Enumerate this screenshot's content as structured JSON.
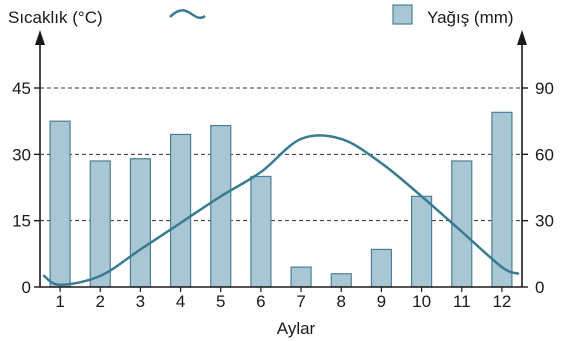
{
  "chart_data": {
    "type": "bar+line",
    "title": "",
    "xlabel": "Aylar",
    "categories": [
      "1",
      "2",
      "3",
      "4",
      "5",
      "6",
      "7",
      "8",
      "9",
      "10",
      "11",
      "12"
    ],
    "temperature": {
      "name": "Sıcaklık (°C)",
      "axis": "left",
      "ylim": [
        0,
        45
      ],
      "ticks": [
        "0",
        "15",
        "30",
        "45"
      ],
      "x": [
        0.6,
        1,
        2,
        3,
        4,
        5,
        6,
        7,
        8,
        9,
        10,
        11,
        12,
        12.4
      ],
      "values": [
        2.5,
        0.5,
        2.5,
        8.5,
        14.5,
        20.5,
        26,
        33.5,
        33.5,
        28,
        20.5,
        12.5,
        4.5,
        3
      ],
      "color": "#3a7b91"
    },
    "precipitation": {
      "name": "Yağış (mm)",
      "axis": "right",
      "ylim": [
        0,
        90
      ],
      "ticks": [
        "0",
        "30",
        "60",
        "90"
      ],
      "values": [
        75,
        57,
        58,
        69,
        73,
        50,
        9,
        6,
        17,
        41,
        57,
        79
      ],
      "color": "#a9c6d4",
      "edge": "#4c7f95"
    },
    "grid": "dashed at 15, 30, 45"
  }
}
